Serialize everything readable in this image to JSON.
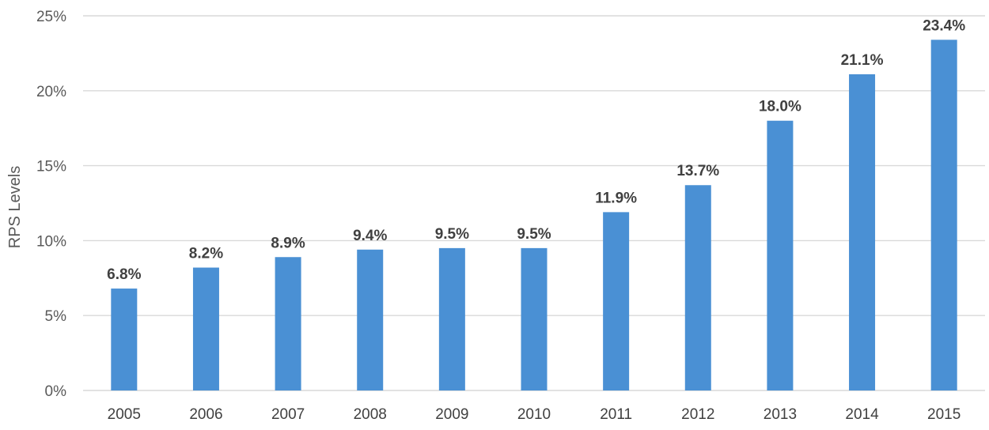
{
  "chart_data": {
    "type": "bar",
    "title": "",
    "xlabel": "",
    "ylabel": "RPS Levels",
    "ylim": [
      0,
      25
    ],
    "yticks": [
      0,
      5,
      10,
      15,
      20,
      25
    ],
    "ytick_labels": [
      "0%",
      "5%",
      "10%",
      "15%",
      "20%",
      "25%"
    ],
    "grid": true,
    "legend": "none",
    "categories": [
      "2005",
      "2006",
      "2007",
      "2008",
      "2009",
      "2010",
      "2011",
      "2012",
      "2013",
      "2014",
      "2015"
    ],
    "values": [
      6.8,
      8.2,
      8.9,
      9.4,
      9.5,
      9.5,
      11.9,
      13.7,
      18.0,
      21.1,
      23.4
    ],
    "data_labels": [
      "6.8%",
      "8.2%",
      "8.9%",
      "9.4%",
      "9.5%",
      "9.5%",
      "11.9%",
      "13.7%",
      "18.0%",
      "21.1%",
      "23.4%"
    ],
    "bar_color": "#4a90d4",
    "grid_color": "#d9d9d9"
  }
}
